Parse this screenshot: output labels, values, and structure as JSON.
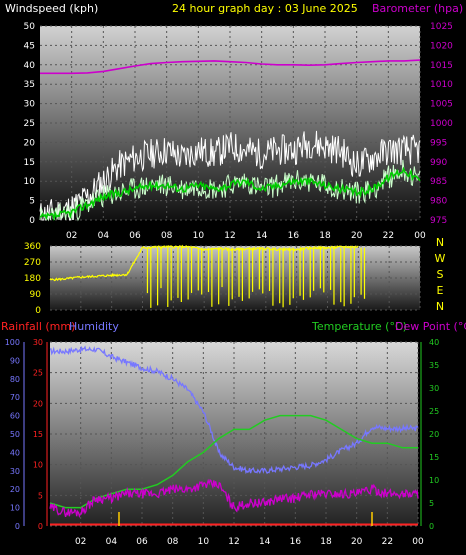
{
  "header": {
    "wind_title": "Windspeed (kph)",
    "date_title": "24 hour graph day : 03 June 2025",
    "baro_title": "Barometer (hpa)"
  },
  "lower_header": {
    "rain_title": "Rainfall (mm)",
    "humidity_title": "Humidity",
    "temp_title": "Temperature (°C)",
    "dew_title": "Dew Point (°C)"
  },
  "colors": {
    "wind_gust": "#ffffff",
    "wind_avg": "#00cc00",
    "wind_light": "#ccffcc",
    "barometer": "#cc00cc",
    "direction": "#ffff00",
    "rainfall": "#ff2222",
    "rain_tick": "#ffcc00",
    "humidity": "#7777ff",
    "temperature": "#22cc22",
    "dewpoint": "#cc00cc",
    "date_title": "#ffff00"
  },
  "chart_data": [
    {
      "id": "wind-baro",
      "type": "line",
      "title": "24 hour graph day : 03 June 2025",
      "x_ticks": [
        "02",
        "04",
        "06",
        "08",
        "10",
        "12",
        "14",
        "16",
        "18",
        "20",
        "22",
        "00"
      ],
      "left_axis": {
        "label": "Windspeed (kph)",
        "ylim": [
          0,
          50
        ],
        "ticks": [
          0,
          5,
          10,
          15,
          20,
          25,
          30,
          35,
          40,
          45,
          50
        ]
      },
      "right_axis": {
        "label": "Barometer (hpa)",
        "ylim": [
          975,
          1025
        ],
        "ticks": [
          975,
          980,
          985,
          990,
          995,
          1000,
          1005,
          1010,
          1015,
          1020,
          1025
        ]
      },
      "series": [
        {
          "name": "Windspeed gust",
          "axis": "left",
          "x": [
            0,
            1,
            2,
            3,
            4,
            5,
            6,
            7,
            8,
            9,
            10,
            11,
            12,
            13,
            14,
            15,
            16,
            17,
            18,
            19,
            20,
            21,
            22,
            23,
            24
          ],
          "values": [
            1,
            2,
            3,
            6,
            10,
            14,
            16,
            17,
            18,
            16,
            18,
            17,
            19,
            18,
            17,
            18,
            18,
            20,
            19,
            18,
            14,
            16,
            18,
            18,
            18
          ]
        },
        {
          "name": "Windspeed",
          "axis": "left",
          "x": [
            0,
            1,
            2,
            3,
            4,
            5,
            6,
            7,
            8,
            9,
            10,
            11,
            12,
            13,
            14,
            15,
            16,
            17,
            18,
            19,
            20,
            21,
            22,
            23,
            24
          ],
          "values": [
            0.5,
            1,
            2,
            4,
            6,
            7,
            8,
            9,
            9,
            8,
            9,
            8,
            9,
            10,
            8,
            9,
            10,
            10,
            9,
            8,
            7,
            8,
            11,
            13,
            10
          ]
        },
        {
          "name": "Barometer",
          "axis": "right",
          "x": [
            0,
            1,
            2,
            3,
            4,
            5,
            6,
            7,
            8,
            9,
            10,
            11,
            12,
            13,
            14,
            15,
            16,
            17,
            18,
            19,
            20,
            21,
            22,
            23,
            24
          ],
          "values": [
            1012.8,
            1012.8,
            1012.8,
            1012.9,
            1013.3,
            1014.0,
            1014.7,
            1015.3,
            1015.6,
            1015.8,
            1015.9,
            1016.0,
            1015.8,
            1015.6,
            1015.2,
            1015.0,
            1015.0,
            1014.9,
            1015.0,
            1015.3,
            1015.6,
            1015.8,
            1016.0,
            1016.0,
            1016.2
          ]
        }
      ],
      "grid": true
    },
    {
      "id": "wind-direction",
      "type": "line",
      "left_axis": {
        "ylim": [
          0,
          360
        ],
        "ticks": [
          0,
          90,
          180,
          270,
          360
        ]
      },
      "compass_labels": [
        "N",
        "W",
        "S",
        "E",
        "N"
      ],
      "series": [
        {
          "name": "Wind direction",
          "x": [
            0,
            1,
            2,
            3,
            4,
            5,
            6,
            7,
            8,
            9,
            10,
            11,
            12,
            13,
            14,
            15,
            16,
            17,
            18,
            19,
            20
          ],
          "values": [
            170,
            175,
            185,
            190,
            195,
            200,
            350,
            355,
            355,
            355,
            340,
            345,
            340,
            345,
            345,
            340,
            340,
            350,
            350,
            355,
            355
          ]
        }
      ],
      "grid": true
    },
    {
      "id": "rain-humidity-temp",
      "type": "line",
      "x_ticks": [
        "02",
        "04",
        "06",
        "08",
        "10",
        "12",
        "14",
        "16",
        "18",
        "20",
        "22",
        "00"
      ],
      "humidity_axis": {
        "label": "Humidity",
        "ylim": [
          0,
          100
        ],
        "ticks": [
          0,
          10,
          20,
          30,
          40,
          50,
          60,
          70,
          80,
          90,
          100
        ]
      },
      "rain_axis": {
        "label": "Rainfall (mm)",
        "ylim": [
          0,
          30
        ],
        "ticks": [
          0,
          5,
          10,
          15,
          20,
          25,
          30
        ]
      },
      "temp_axis": {
        "label": "Temperature (°C)",
        "ylim": [
          0,
          40
        ],
        "ticks": [
          0,
          5,
          10,
          15,
          20,
          25,
          30,
          35,
          40
        ]
      },
      "series": [
        {
          "name": "Humidity",
          "axis": "humidity",
          "x": [
            0,
            1,
            2,
            3,
            4,
            5,
            6,
            7,
            8,
            9,
            10,
            10.5,
            11,
            12,
            13,
            14,
            15,
            16,
            17,
            18,
            19,
            20,
            21,
            22,
            23,
            24
          ],
          "values": [
            95,
            95,
            96,
            96,
            92,
            89,
            86,
            84,
            80,
            74,
            62,
            52,
            40,
            32,
            30,
            30,
            31,
            32,
            33,
            36,
            41,
            45,
            54,
            53,
            53,
            53
          ]
        },
        {
          "name": "Rainfall",
          "axis": "rain",
          "x": [
            0,
            24
          ],
          "values": [
            0,
            0
          ]
        },
        {
          "name": "Temperature",
          "axis": "temp",
          "x": [
            0,
            1,
            2,
            3,
            4,
            5,
            6,
            7,
            8,
            9,
            10,
            11,
            12,
            13,
            14,
            15,
            16,
            17,
            18,
            19,
            20,
            21,
            22,
            23,
            24
          ],
          "values": [
            5,
            4,
            4,
            6,
            7,
            8,
            8,
            9,
            11,
            14,
            16,
            19,
            21,
            21,
            23,
            24,
            24,
            24,
            23,
            21,
            19,
            18,
            18,
            17,
            17
          ]
        },
        {
          "name": "Dew Point",
          "axis": "temp",
          "x": [
            0,
            1,
            2,
            3,
            4,
            5,
            6,
            7,
            8,
            9,
            10,
            11,
            12,
            13,
            14,
            15,
            16,
            17,
            18,
            19,
            20,
            21,
            22,
            23,
            24
          ],
          "values": [
            4,
            3,
            3,
            6,
            6,
            7,
            7,
            7,
            8,
            8,
            9,
            9,
            4,
            5,
            5,
            6,
            6,
            7,
            7,
            7,
            7,
            8,
            7,
            7,
            7
          ]
        }
      ],
      "rain_ticks_x": [
        4.5,
        21
      ],
      "grid": true
    }
  ]
}
